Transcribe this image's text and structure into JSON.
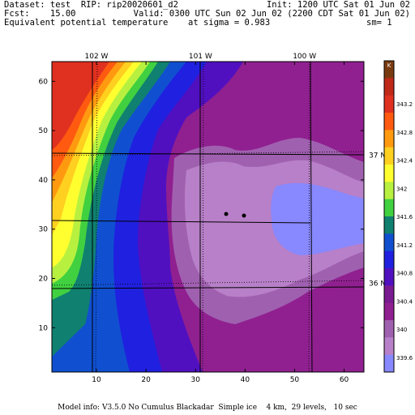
{
  "header": {
    "dataset": "Dataset: test  RIP: rip20020601_d2",
    "init": "Init: 1200 UTC Sat 01 Jun 02",
    "fcst": "Fcst:    15.00",
    "valid": "Valid: 0300 UTC Sun 02 Jun 02 (2200 CDT Sat 01 Jun 02)",
    "field": "Equivalent potential temperature",
    "level": "at sigma = 0.983",
    "sm": "sm= 1"
  },
  "footer": "Model info: V3.5.0 No Cumulus Blackadar  Simple ice    4 km,  29 levels,   10 sec",
  "chart_data": {
    "type": "heatmap",
    "title": "Equivalent potential temperature",
    "x_ticks": [
      10,
      20,
      30,
      40,
      50,
      60
    ],
    "y_ticks": [
      10,
      20,
      30,
      40,
      50,
      60
    ],
    "xlim": [
      1,
      64
    ],
    "ylim": [
      1,
      64
    ],
    "lon_labels": [
      {
        "label": "102 W",
        "x": 10
      },
      {
        "label": "101 W",
        "x": 31
      },
      {
        "label": "100 W",
        "x": 52
      }
    ],
    "lat_labels": [
      {
        "label": "37 N",
        "y": 45
      },
      {
        "label": "36 N",
        "y": 19
      }
    ],
    "colorbar": {
      "unit": "K",
      "labels": [
        "343.2",
        "342.8",
        "342.4",
        "342",
        "341.6",
        "341.2",
        "340.8",
        "340.4",
        "340",
        "339.6"
      ],
      "colors": [
        "#7a3a10",
        "#c02818",
        "#e03020",
        "#ff5a10",
        "#ff9a10",
        "#ffd020",
        "#ffff30",
        "#b8f040",
        "#40d040",
        "#108070",
        "#1050d0",
        "#2020e0",
        "#5010c0",
        "#7a1a90",
        "#902090",
        "#a060b0",
        "#b880c8",
        "#8888ff"
      ]
    },
    "grid": "dotted lon/lat lines"
  }
}
